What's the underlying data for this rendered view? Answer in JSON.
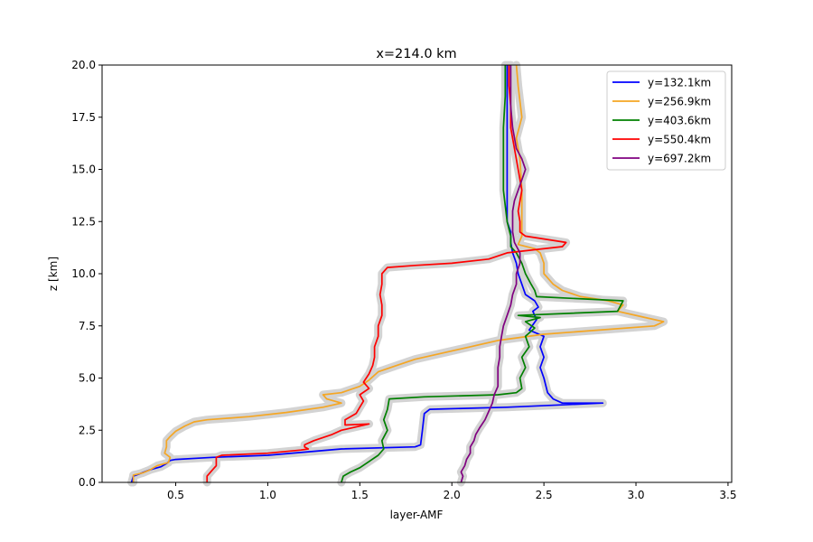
{
  "chart_data": {
    "type": "line",
    "title": "x=214.0 km",
    "xlabel": "layer-AMF",
    "ylabel": "z [km]",
    "xlim": [
      0.1,
      3.52
    ],
    "ylim": [
      0,
      20
    ],
    "xticks": [
      0.5,
      1.0,
      1.5,
      2.0,
      2.5,
      3.0,
      3.5
    ],
    "xtick_labels": [
      "0.5",
      "1.0",
      "1.5",
      "2.0",
      "2.5",
      "3.0",
      "3.5"
    ],
    "yticks": [
      0,
      2.5,
      5,
      7.5,
      10,
      12.5,
      15,
      17.5,
      20
    ],
    "ytick_labels": [
      "0.0",
      "2.5",
      "5.0",
      "7.5",
      "10.0",
      "12.5",
      "15.0",
      "17.5",
      "20.0"
    ],
    "grid": false,
    "legend_position": "top-right",
    "uncertainty_band_color": "#d3d3d3",
    "series": [
      {
        "name": "y=132.1km",
        "color": "#0000ff",
        "points": [
          [
            0.26,
            0
          ],
          [
            0.27,
            0.3
          ],
          [
            0.3,
            0.4
          ],
          [
            0.36,
            0.6
          ],
          [
            0.42,
            0.75
          ],
          [
            0.45,
            0.9
          ],
          [
            0.47,
            1.05
          ],
          [
            0.5,
            1.1
          ],
          [
            0.7,
            1.2
          ],
          [
            1.0,
            1.3
          ],
          [
            1.2,
            1.45
          ],
          [
            1.4,
            1.6
          ],
          [
            1.8,
            1.7
          ],
          [
            1.83,
            1.8
          ],
          [
            1.84,
            2.5
          ],
          [
            1.85,
            3.3
          ],
          [
            1.88,
            3.5
          ],
          [
            2.3,
            3.6
          ],
          [
            2.82,
            3.8
          ],
          [
            2.6,
            3.8
          ],
          [
            2.55,
            4.0
          ],
          [
            2.52,
            4.3
          ],
          [
            2.5,
            5.0
          ],
          [
            2.48,
            5.5
          ],
          [
            2.5,
            6.0
          ],
          [
            2.48,
            6.5
          ],
          [
            2.5,
            7.0
          ],
          [
            2.42,
            7.3
          ],
          [
            2.46,
            7.8
          ],
          [
            2.44,
            8.2
          ],
          [
            2.47,
            8.4
          ],
          [
            2.45,
            8.7
          ],
          [
            2.4,
            9.0
          ],
          [
            2.38,
            9.5
          ],
          [
            2.36,
            10.0
          ],
          [
            2.35,
            10.5
          ],
          [
            2.33,
            11.0
          ],
          [
            2.32,
            11.5
          ],
          [
            2.32,
            12.0
          ],
          [
            2.3,
            12.5
          ],
          [
            2.3,
            15.0
          ],
          [
            2.3,
            17.5
          ],
          [
            2.3,
            20.0
          ]
        ]
      },
      {
        "name": "y=256.9km",
        "color": "#f5a623",
        "points": [
          [
            0.27,
            0
          ],
          [
            0.27,
            0.35
          ],
          [
            0.32,
            0.45
          ],
          [
            0.36,
            0.6
          ],
          [
            0.4,
            0.8
          ],
          [
            0.46,
            0.95
          ],
          [
            0.47,
            1.2
          ],
          [
            0.44,
            1.4
          ],
          [
            0.45,
            1.7
          ],
          [
            0.45,
            2.0
          ],
          [
            0.47,
            2.2
          ],
          [
            0.5,
            2.45
          ],
          [
            0.55,
            2.7
          ],
          [
            0.6,
            2.9
          ],
          [
            0.67,
            3.0
          ],
          [
            0.9,
            3.15
          ],
          [
            1.1,
            3.35
          ],
          [
            1.3,
            3.6
          ],
          [
            1.4,
            3.8
          ],
          [
            1.32,
            4.0
          ],
          [
            1.3,
            4.2
          ],
          [
            1.4,
            4.3
          ],
          [
            1.5,
            4.6
          ],
          [
            1.55,
            4.9
          ],
          [
            1.6,
            5.3
          ],
          [
            1.7,
            5.6
          ],
          [
            1.8,
            5.9
          ],
          [
            1.95,
            6.2
          ],
          [
            2.1,
            6.5
          ],
          [
            2.25,
            6.8
          ],
          [
            2.5,
            7.1
          ],
          [
            2.8,
            7.3
          ],
          [
            3.1,
            7.5
          ],
          [
            3.15,
            7.7
          ],
          [
            3.05,
            7.9
          ],
          [
            2.9,
            8.2
          ],
          [
            2.93,
            8.5
          ],
          [
            2.85,
            8.7
          ],
          [
            2.7,
            8.9
          ],
          [
            2.6,
            9.2
          ],
          [
            2.55,
            9.5
          ],
          [
            2.52,
            9.8
          ],
          [
            2.5,
            10.0
          ],
          [
            2.5,
            10.5
          ],
          [
            2.48,
            11.0
          ],
          [
            2.45,
            11.2
          ],
          [
            2.36,
            11.4
          ],
          [
            2.38,
            11.8
          ],
          [
            2.38,
            12.5
          ],
          [
            2.38,
            14.0
          ],
          [
            2.37,
            15.5
          ],
          [
            2.35,
            16.5
          ],
          [
            2.38,
            17.5
          ],
          [
            2.36,
            19.0
          ],
          [
            2.35,
            20.0
          ]
        ]
      },
      {
        "name": "y=403.6km",
        "color": "#008000",
        "points": [
          [
            1.4,
            0
          ],
          [
            1.41,
            0.3
          ],
          [
            1.45,
            0.5
          ],
          [
            1.5,
            0.7
          ],
          [
            1.55,
            1.0
          ],
          [
            1.6,
            1.3
          ],
          [
            1.63,
            1.6
          ],
          [
            1.62,
            2.0
          ],
          [
            1.65,
            2.5
          ],
          [
            1.63,
            3.0
          ],
          [
            1.65,
            3.5
          ],
          [
            1.66,
            4.0
          ],
          [
            1.85,
            4.1
          ],
          [
            2.25,
            4.2
          ],
          [
            2.35,
            4.3
          ],
          [
            2.38,
            4.5
          ],
          [
            2.37,
            5.0
          ],
          [
            2.4,
            5.5
          ],
          [
            2.38,
            6.0
          ],
          [
            2.42,
            6.5
          ],
          [
            2.4,
            7.0
          ],
          [
            2.45,
            7.4
          ],
          [
            2.4,
            7.7
          ],
          [
            2.48,
            7.9
          ],
          [
            2.36,
            8.0
          ],
          [
            2.9,
            8.2
          ],
          [
            2.93,
            8.7
          ],
          [
            2.46,
            8.9
          ],
          [
            2.45,
            9.2
          ],
          [
            2.43,
            9.5
          ],
          [
            2.4,
            10.0
          ],
          [
            2.38,
            10.5
          ],
          [
            2.35,
            11.0
          ],
          [
            2.32,
            11.3
          ],
          [
            2.32,
            11.8
          ],
          [
            2.3,
            12.5
          ],
          [
            2.28,
            14.0
          ],
          [
            2.28,
            15.5
          ],
          [
            2.28,
            17.0
          ],
          [
            2.29,
            18.5
          ],
          [
            2.29,
            20.0
          ]
        ]
      },
      {
        "name": "y=550.4km",
        "color": "#ff0000",
        "points": [
          [
            0.67,
            0
          ],
          [
            0.67,
            0.3
          ],
          [
            0.7,
            0.6
          ],
          [
            0.72,
            0.8
          ],
          [
            0.72,
            1.2
          ],
          [
            0.75,
            1.3
          ],
          [
            1.0,
            1.4
          ],
          [
            1.18,
            1.55
          ],
          [
            1.22,
            1.6
          ],
          [
            1.2,
            1.7
          ],
          [
            1.2,
            1.8
          ],
          [
            1.25,
            2.0
          ],
          [
            1.35,
            2.3
          ],
          [
            1.4,
            2.5
          ],
          [
            1.55,
            2.8
          ],
          [
            1.42,
            2.75
          ],
          [
            1.42,
            3.0
          ],
          [
            1.48,
            3.3
          ],
          [
            1.5,
            3.6
          ],
          [
            1.52,
            3.9
          ],
          [
            1.5,
            4.2
          ],
          [
            1.55,
            4.5
          ],
          [
            1.52,
            4.8
          ],
          [
            1.55,
            5.2
          ],
          [
            1.57,
            5.6
          ],
          [
            1.58,
            6.0
          ],
          [
            1.58,
            6.5
          ],
          [
            1.6,
            7.0
          ],
          [
            1.6,
            7.5
          ],
          [
            1.62,
            8.0
          ],
          [
            1.62,
            8.5
          ],
          [
            1.61,
            9.0
          ],
          [
            1.62,
            9.5
          ],
          [
            1.62,
            10.0
          ],
          [
            1.65,
            10.3
          ],
          [
            1.8,
            10.4
          ],
          [
            2.0,
            10.5
          ],
          [
            2.2,
            10.7
          ],
          [
            2.3,
            11.0
          ],
          [
            2.6,
            11.3
          ],
          [
            2.62,
            11.5
          ],
          [
            2.4,
            11.8
          ],
          [
            2.37,
            12.0
          ],
          [
            2.37,
            12.5
          ],
          [
            2.36,
            13.0
          ],
          [
            2.38,
            14.0
          ],
          [
            2.36,
            15.0
          ],
          [
            2.34,
            16.0
          ],
          [
            2.32,
            17.0
          ],
          [
            2.32,
            18.0
          ],
          [
            2.31,
            19.0
          ],
          [
            2.31,
            20.0
          ]
        ]
      },
      {
        "name": "y=697.2km",
        "color": "#800080",
        "points": [
          [
            2.05,
            0
          ],
          [
            2.06,
            0.3
          ],
          [
            2.05,
            0.5
          ],
          [
            2.07,
            0.8
          ],
          [
            2.08,
            1.1
          ],
          [
            2.1,
            1.4
          ],
          [
            2.1,
            1.7
          ],
          [
            2.12,
            2.0
          ],
          [
            2.13,
            2.3
          ],
          [
            2.15,
            2.6
          ],
          [
            2.18,
            3.0
          ],
          [
            2.2,
            3.4
          ],
          [
            2.22,
            3.8
          ],
          [
            2.23,
            4.2
          ],
          [
            2.25,
            4.6
          ],
          [
            2.25,
            5.0
          ],
          [
            2.25,
            5.5
          ],
          [
            2.26,
            6.0
          ],
          [
            2.26,
            6.5
          ],
          [
            2.27,
            7.0
          ],
          [
            2.28,
            7.5
          ],
          [
            2.3,
            8.0
          ],
          [
            2.32,
            8.5
          ],
          [
            2.33,
            9.0
          ],
          [
            2.35,
            9.5
          ],
          [
            2.35,
            10.0
          ],
          [
            2.37,
            10.5
          ],
          [
            2.37,
            11.0
          ],
          [
            2.34,
            11.5
          ],
          [
            2.33,
            12.0
          ],
          [
            2.33,
            13.0
          ],
          [
            2.34,
            13.5
          ],
          [
            2.36,
            14.0
          ],
          [
            2.38,
            14.5
          ],
          [
            2.4,
            15.0
          ],
          [
            2.38,
            15.5
          ],
          [
            2.35,
            16.0
          ],
          [
            2.33,
            17.0
          ],
          [
            2.32,
            18.0
          ],
          [
            2.32,
            19.0
          ],
          [
            2.32,
            20.0
          ]
        ]
      }
    ]
  }
}
